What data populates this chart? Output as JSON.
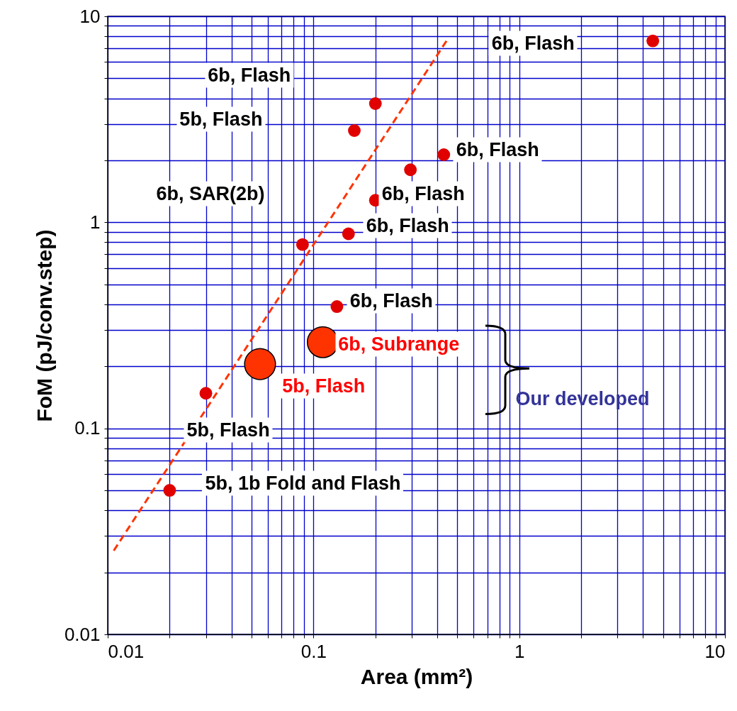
{
  "chart_data": {
    "type": "scatter",
    "xlabel": "Area (mm²)",
    "ylabel": "FoM (pJ/conv.step)",
    "log": "xy",
    "grid": true,
    "marker": "circle",
    "xlim": [
      0.01,
      10
    ],
    "ylim": [
      0.01,
      10
    ],
    "xticks": [
      0.01,
      0.1,
      1,
      10
    ],
    "yticks": [
      0.01,
      0.1,
      1,
      10
    ],
    "series": [
      {
        "color": "#e00000",
        "x": [
          4.46,
          0.2,
          0.158,
          0.43,
          0.296,
          0.2,
          0.148,
          0.0885,
          0.13,
          0.03,
          0.02
        ],
        "values": [
          7.6,
          3.77,
          2.79,
          2.13,
          1.8,
          1.28,
          0.88,
          0.78,
          0.39,
          0.148,
          0.05
        ]
      },
      {
        "type": "bubble",
        "color": "#ff3300",
        "x": [
          0.055,
          0.111
        ],
        "values": [
          0.205,
          0.262
        ],
        "sizes": [
          1,
          1
        ]
      },
      {
        "type": "line",
        "marker": "none",
        "color": "#ff3300",
        "line_style": "dashed",
        "x": [
          0.0107,
          0.454
        ],
        "values": [
          0.0255,
          7.88
        ]
      }
    ],
    "annotations": [
      "6b, Flash",
      "6b, Flash",
      "5b, Flash",
      "6b, Flash",
      "6b, SAR(2b)",
      "6b, Flash",
      "6b, Flash",
      "6b, Flash",
      "6b, Subrange",
      "5b, Flash",
      "5b, Flash",
      "5b, 1b Fold and Flash",
      "Our developed"
    ]
  }
}
